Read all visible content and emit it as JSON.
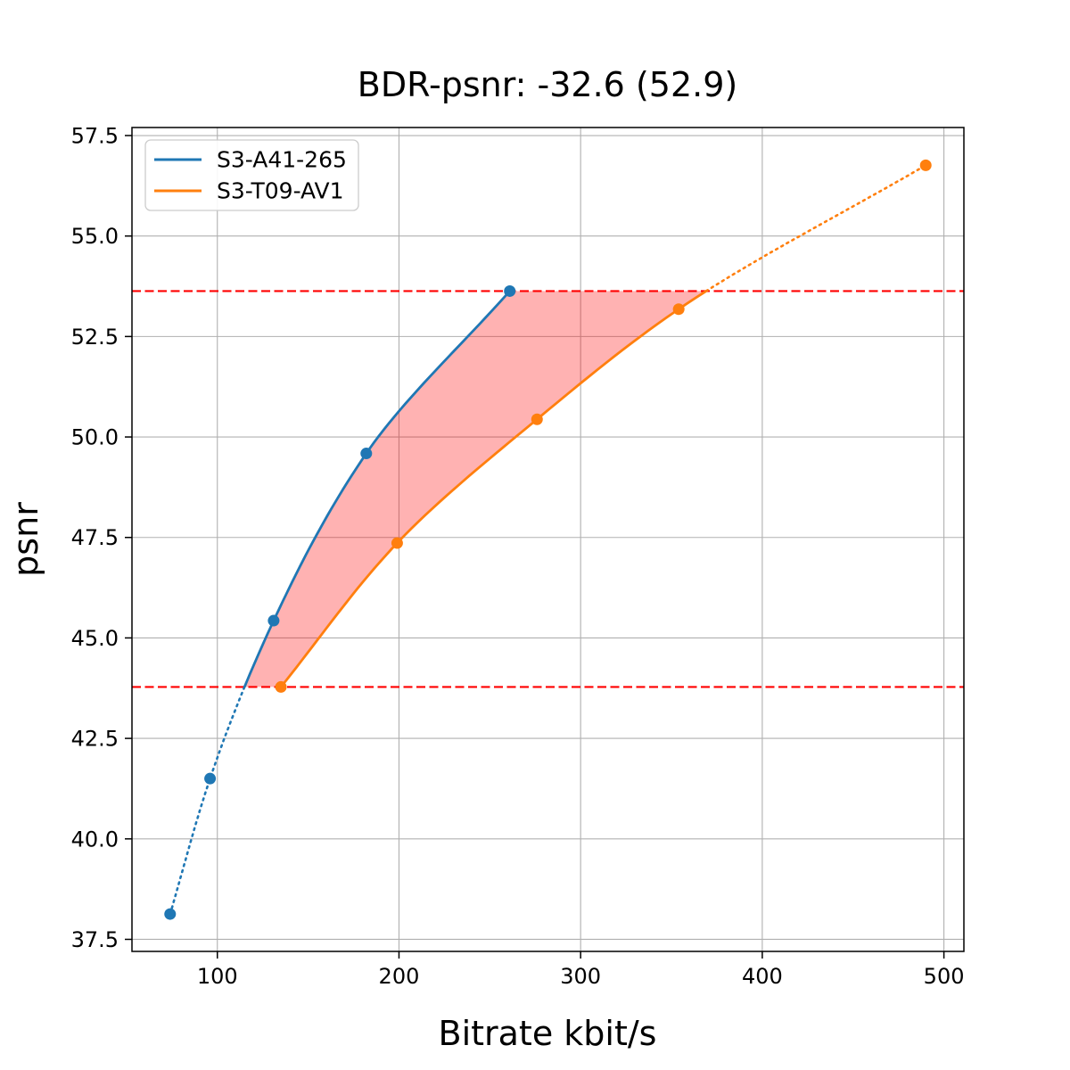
{
  "title": "BDR-psnr: -32.6 (52.9)",
  "chart_data": {
    "type": "line",
    "title": "BDR-psnr: -32.6 (52.9)",
    "xlabel": "Bitrate kbit/s",
    "ylabel": "psnr",
    "xlim": [
      53,
      511
    ],
    "ylim": [
      37.2,
      57.7
    ],
    "x_ticks": [
      100,
      200,
      300,
      400,
      500
    ],
    "y_ticks": [
      37.5,
      40.0,
      42.5,
      45.0,
      47.5,
      50.0,
      52.5,
      55.0,
      57.5
    ],
    "grid": true,
    "legend_position": "upper-left",
    "series": [
      {
        "name": "S3-A41-265",
        "color": "#1f77b4",
        "x": [
          74,
          96,
          131,
          182,
          261
        ],
        "y": [
          38.13,
          41.5,
          45.43,
          49.59,
          53.63
        ]
      },
      {
        "name": "S3-T09-AV1",
        "color": "#ff7f0e",
        "x": [
          135,
          199,
          276,
          354,
          490
        ],
        "y": [
          43.78,
          47.36,
          50.44,
          53.18,
          56.76
        ]
      }
    ],
    "overlap_range": {
      "lower": 43.78,
      "upper": 53.63,
      "line_color": "#ff0000",
      "fill_color": "rgba(255,0,0,0.3)"
    },
    "grid_color": "#b0b0b0",
    "spine_color": "#000000"
  }
}
